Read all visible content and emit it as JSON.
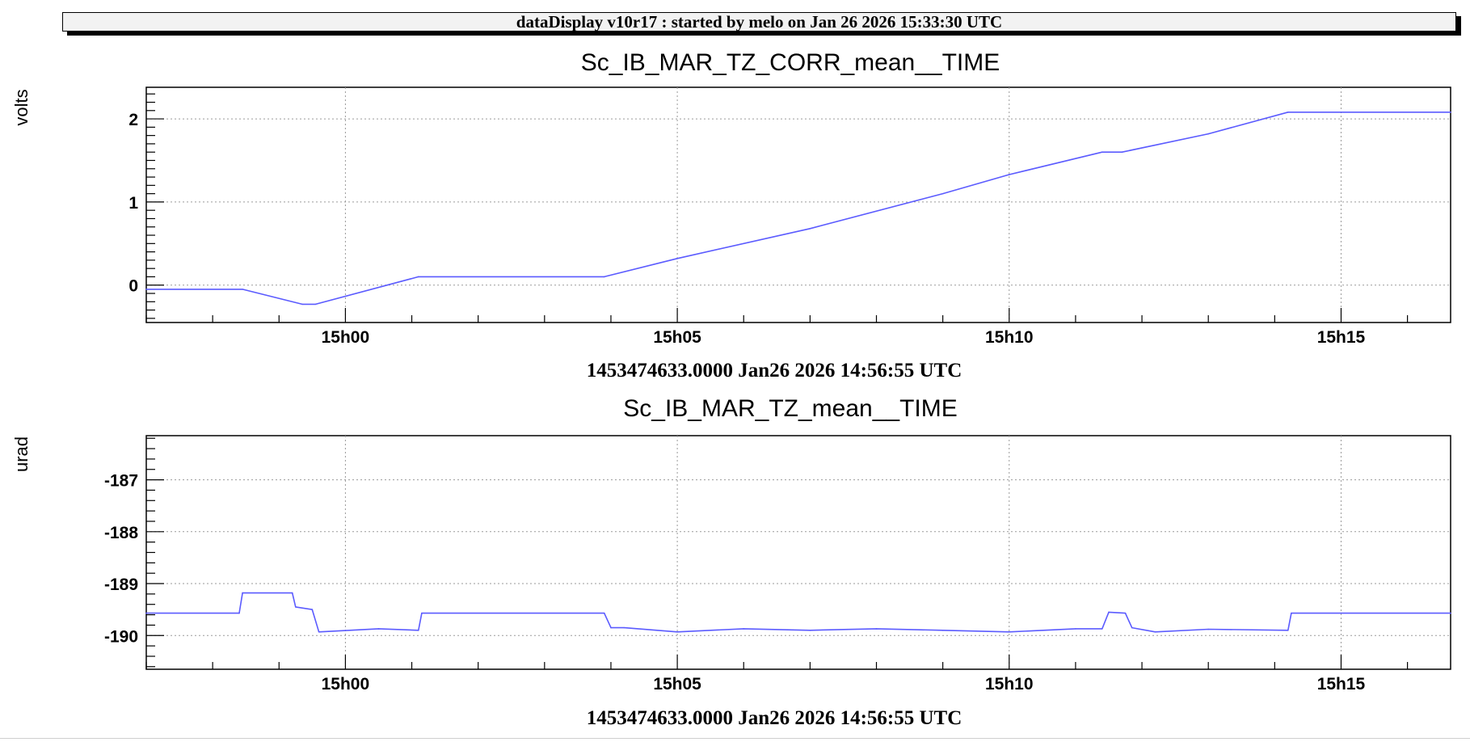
{
  "banner": "dataDisplay v10r17 : started by melo on Jan 26 2026 15:33:30 UTC",
  "chart_data": [
    {
      "type": "line",
      "title": "Sc_IB_MAR_TZ_CORR_mean__TIME",
      "ylabel": "volts",
      "xlabel": "1453474633.0000 Jan26 2026 14:56:55 UTC",
      "x_unit": "minutes past 15h00",
      "xlim": [
        -3.0,
        16.65
      ],
      "ylim": [
        -0.45,
        2.38
      ],
      "grid": true,
      "yticks": [
        0,
        1,
        2
      ],
      "ytick_labels": [
        "0",
        "1",
        "2"
      ],
      "xticks": [
        0,
        5,
        10,
        15
      ],
      "xtick_labels": [
        "15h00",
        "15h05",
        "15h10",
        "15h15"
      ],
      "color": "#5b5bff",
      "series": [
        {
          "x": [
            -3.0,
            -1.55,
            -0.65,
            -0.45,
            1.1,
            3.9,
            5.0,
            7.0,
            9.0,
            10.0,
            11.4,
            11.7,
            13.0,
            14.2,
            16.65
          ],
          "y": [
            -0.05,
            -0.05,
            -0.23,
            -0.23,
            0.1,
            0.1,
            0.32,
            0.68,
            1.1,
            1.33,
            1.6,
            1.6,
            1.82,
            2.08,
            2.08
          ]
        }
      ]
    },
    {
      "type": "line",
      "title": "Sc_IB_MAR_TZ_mean__TIME",
      "ylabel": "urad",
      "xlabel": "1453474633.0000 Jan26 2026 14:56:55 UTC",
      "x_unit": "minutes past 15h00",
      "xlim": [
        -3.0,
        16.65
      ],
      "ylim": [
        -190.65,
        -186.15
      ],
      "grid": true,
      "yticks": [
        -190,
        -189,
        -188,
        -187
      ],
      "ytick_labels": [
        "-190",
        "-189",
        "-188",
        "-187"
      ],
      "xticks": [
        0,
        5,
        10,
        15
      ],
      "xtick_labels": [
        "15h00",
        "15h05",
        "15h10",
        "15h15"
      ],
      "color": "#5b5bff",
      "series": [
        {
          "x": [
            -3.0,
            -1.6,
            -1.55,
            -0.8,
            -0.75,
            -0.5,
            -0.4,
            0.5,
            1.1,
            1.15,
            3.9,
            4.0,
            4.2,
            5.0,
            6.0,
            7.0,
            8.0,
            9.0,
            10.0,
            11.0,
            11.4,
            11.5,
            11.75,
            11.85,
            12.2,
            13.0,
            14.2,
            14.25,
            16.65
          ],
          "y": [
            -189.57,
            -189.57,
            -189.18,
            -189.18,
            -189.45,
            -189.5,
            -189.93,
            -189.87,
            -189.9,
            -189.57,
            -189.57,
            -189.85,
            -189.85,
            -189.93,
            -189.87,
            -189.9,
            -189.87,
            -189.9,
            -189.93,
            -189.87,
            -189.87,
            -189.55,
            -189.57,
            -189.85,
            -189.93,
            -189.88,
            -189.9,
            -189.57,
            -189.57
          ]
        }
      ]
    }
  ]
}
